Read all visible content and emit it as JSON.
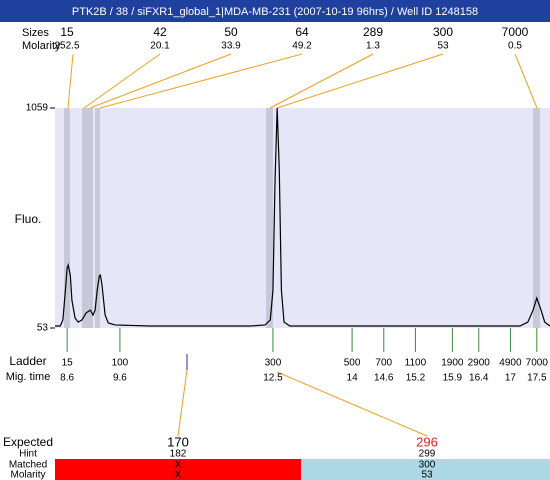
{
  "header": {
    "title": "PTK2B / 38 / siFXR1_global_1|MDA-MB-231 (2007-10-19 96hrs) / Well ID 1248158"
  },
  "chart_data": {
    "type": "line",
    "y_label": "Fluo.",
    "ylim": [
      53,
      1059
    ],
    "yticks": [
      53,
      1059
    ],
    "xlim": [
      8.37,
      17.75
    ],
    "x": [
      8.37,
      8.47,
      8.52,
      8.56,
      8.6,
      8.62,
      8.66,
      8.69,
      8.75,
      8.81,
      8.88,
      8.96,
      9.04,
      9.09,
      9.13,
      9.17,
      9.21,
      9.23,
      9.26,
      9.32,
      9.38,
      9.51,
      10.17,
      11.12,
      12.07,
      12.35,
      12.45,
      12.5,
      12.54,
      12.58,
      12.62,
      12.66,
      12.71,
      12.82,
      13.96,
      15.85,
      17.18,
      17.33,
      17.43,
      17.5,
      17.58,
      17.65,
      17.75
    ],
    "series": [
      {
        "color": "#000000",
        "values": [
          62,
          62,
          90,
          204,
          327,
          341,
          295,
          181,
          99,
          80,
          90,
          122,
          135,
          112,
          135,
          227,
          291,
          295,
          250,
          112,
          76,
          67,
          62,
          62,
          62,
          67,
          90,
          227,
          730,
          1059,
          776,
          227,
          80,
          62,
          62,
          62,
          62,
          80,
          135,
          190,
          135,
          80,
          62
        ]
      }
    ]
  },
  "peaks": {
    "size_label": "Sizes",
    "molarity_label": "Molarity",
    "sizes": [
      "15",
      "42",
      "50",
      "64",
      "289",
      "300",
      "7000"
    ],
    "molarity": [
      "252.5",
      "20.1",
      "33.9",
      "49.2",
      "1.3",
      "53",
      "0.5"
    ]
  },
  "ladder": {
    "label": "Ladder",
    "time_label": "Mig. time",
    "sizes": [
      "15",
      "100",
      "300",
      "500",
      "700",
      "1100",
      "1900",
      "2900",
      "4900",
      "7000"
    ],
    "times": [
      8.6,
      9.6,
      12.5,
      14,
      14.6,
      15.2,
      15.9,
      16.4,
      17,
      17.5
    ]
  },
  "results": {
    "labels": [
      "Expected",
      "Hint",
      "Matched",
      "Molarity"
    ],
    "columns": [
      {
        "expected": "170",
        "hint": "182",
        "matched": "X",
        "molarity": "X"
      },
      {
        "expected": "296",
        "hint": "299",
        "matched": "300",
        "molarity": "53"
      }
    ]
  }
}
